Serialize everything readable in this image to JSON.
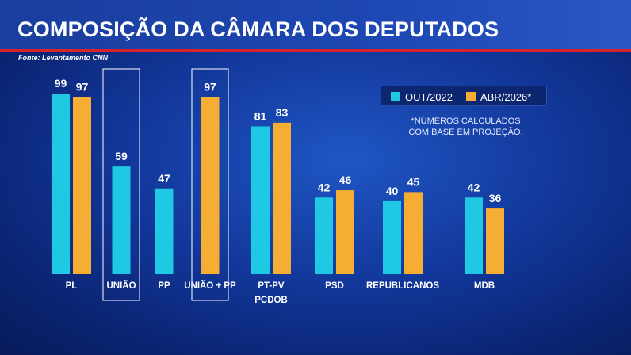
{
  "header": {
    "title": "COMPOSIÇÃO DA CÂMARA DOS DEPUTADOS",
    "source": "Fonte: Levantamento CNN"
  },
  "legend": {
    "items": [
      {
        "label": "OUT/2022",
        "color": "#1fc8e3"
      },
      {
        "label": "ABR/2026*",
        "color": "#f5ad33"
      }
    ]
  },
  "note": {
    "line1": "*NÚMEROS CALCULADOS",
    "line2": "COM BASE EM PROJEÇÃO."
  },
  "chart_data": {
    "type": "bar",
    "categories": [
      "PL",
      "UNIÃO",
      "PP",
      "UNIÃO + PP",
      "PT-PV\nPCDOB",
      "PSD",
      "REPUBLICANOS",
      "MDB"
    ],
    "series": [
      {
        "name": "OUT/2022",
        "color": "#1fc8e3",
        "values": [
          99,
          59,
          47,
          null,
          81,
          42,
          40,
          42
        ]
      },
      {
        "name": "ABR/2026*",
        "color": "#f5ad33",
        "values": [
          97,
          null,
          null,
          97,
          83,
          46,
          45,
          36
        ]
      }
    ],
    "highlighted_categories": [
      "UNIÃO",
      "UNIÃO + PP"
    ],
    "ylim": [
      0,
      100
    ],
    "grid": false,
    "legend_position": "top-right"
  }
}
